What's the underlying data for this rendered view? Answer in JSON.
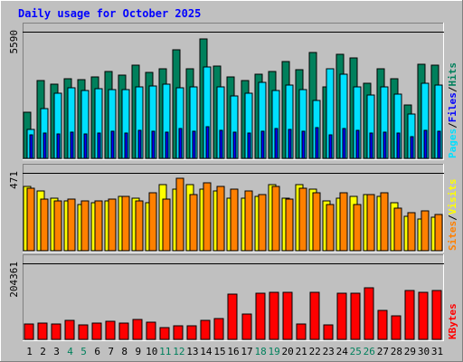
{
  "title": "Daily usage for October 2025",
  "colors": {
    "background": "#c0c0c0",
    "plot_background": "#c0c0c0",
    "title": "#0000ff",
    "hits": "#00805c",
    "files": "#0000ff",
    "pages": "#00e0ff",
    "visits": "#ffff00",
    "sites": "#ff8000",
    "kbytes": "#ff0000",
    "weekend_label": "#00805c",
    "weekday_label": "#000000"
  },
  "chart_data": [
    {
      "type": "bar",
      "title": "Daily usage for October 2025",
      "categories": [
        "1",
        "2",
        "3",
        "4",
        "5",
        "6",
        "7",
        "8",
        "9",
        "10",
        "11",
        "12",
        "13",
        "14",
        "15",
        "16",
        "17",
        "18",
        "19",
        "20",
        "21",
        "22",
        "23",
        "24",
        "25",
        "26",
        "27",
        "28",
        "29",
        "30",
        "31"
      ],
      "weekend_days": [
        4,
        5,
        11,
        12,
        18,
        19,
        25,
        26
      ],
      "ymax_label": "5590",
      "ylim": [
        0,
        5590
      ],
      "series": [
        {
          "name": "Hits",
          "values": [
            2040,
            3420,
            3290,
            3500,
            3480,
            3590,
            3820,
            3680,
            4100,
            3800,
            3950,
            4810,
            3950,
            5270,
            4080,
            3600,
            3450,
            3720,
            3830,
            4280,
            3930,
            4690,
            3140,
            4580,
            4450,
            3320,
            3950,
            3500,
            2340,
            4140,
            4110
          ]
        },
        {
          "name": "Files",
          "values": [
            1020,
            1100,
            1060,
            1150,
            1080,
            1100,
            1200,
            1130,
            1250,
            1200,
            1150,
            1300,
            1180,
            1400,
            1250,
            1150,
            1100,
            1200,
            1300,
            1280,
            1200,
            1350,
            1050,
            1300,
            1250,
            1100,
            1150,
            1100,
            950,
            1250,
            1200
          ]
        },
        {
          "name": "Pages",
          "values": [
            1290,
            2180,
            2860,
            3130,
            2980,
            3060,
            3020,
            3020,
            3170,
            3190,
            3270,
            3130,
            3160,
            4030,
            3170,
            2770,
            2860,
            3370,
            2990,
            3240,
            3040,
            2560,
            3970,
            3720,
            3170,
            2800,
            3150,
            2850,
            1970,
            3310,
            3230
          ]
        }
      ],
      "ylabels": [
        "Pages",
        "Files",
        "Hits"
      ]
    },
    {
      "type": "bar",
      "ymax_label": "471",
      "ylim": [
        0,
        471
      ],
      "series": [
        {
          "name": "Visits",
          "values": [
            390,
            360,
            320,
            300,
            280,
            290,
            300,
            330,
            320,
            290,
            400,
            370,
            400,
            370,
            360,
            320,
            320,
            330,
            400,
            320,
            400,
            370,
            300,
            320,
            330,
            340,
            330,
            290,
            210,
            190,
            200
          ]
        },
        {
          "name": "Sites",
          "values": [
            380,
            310,
            300,
            310,
            300,
            300,
            310,
            330,
            300,
            350,
            310,
            440,
            340,
            410,
            390,
            370,
            360,
            340,
            390,
            310,
            380,
            350,
            280,
            350,
            280,
            340,
            350,
            260,
            230,
            240,
            220
          ]
        }
      ],
      "ylabels": [
        "Sites",
        "Visits"
      ]
    },
    {
      "type": "bar",
      "ymax_label": "204361",
      "ylim": [
        0,
        204361
      ],
      "series": [
        {
          "name": "KBytes",
          "values": [
            42000,
            45000,
            41000,
            52000,
            40000,
            43000,
            49000,
            44000,
            53000,
            46000,
            32000,
            37000,
            37000,
            51000,
            57000,
            122000,
            69000,
            123000,
            127000,
            127000,
            41000,
            126000,
            40000,
            125000,
            125000,
            138000,
            77000,
            63000,
            132000,
            126000,
            132000
          ]
        }
      ],
      "ylabels": [
        "KBytes"
      ]
    }
  ]
}
